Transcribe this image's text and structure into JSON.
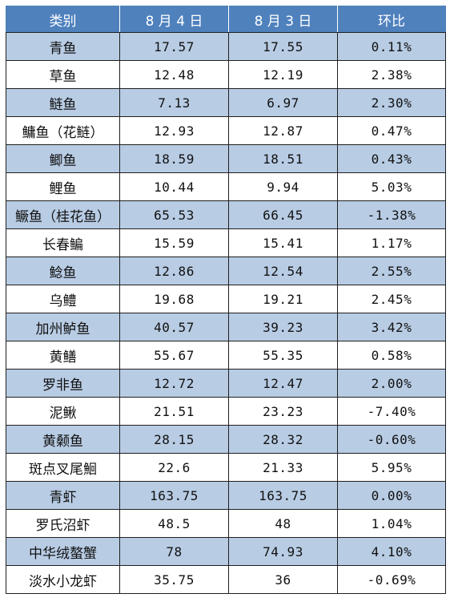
{
  "table": {
    "headers": [
      "类别",
      "8 月 4 日",
      "8 月 3 日",
      "环比"
    ],
    "rows": [
      [
        "青鱼",
        "17.57",
        "17.55",
        "0.11%"
      ],
      [
        "草鱼",
        "12.48",
        "12.19",
        "2.38%"
      ],
      [
        "鲢鱼",
        "7.13",
        "6.97",
        "2.30%"
      ],
      [
        "鳙鱼（花鲢）",
        "12.93",
        "12.87",
        "0.47%"
      ],
      [
        "鲫鱼",
        "18.59",
        "18.51",
        "0.43%"
      ],
      [
        "鲤鱼",
        "10.44",
        "9.94",
        "5.03%"
      ],
      [
        "鳜鱼（桂花鱼）",
        "65.53",
        "66.45",
        "-1.38%"
      ],
      [
        "长春鳊",
        "15.59",
        "15.41",
        "1.17%"
      ],
      [
        "鲶鱼",
        "12.86",
        "12.54",
        "2.55%"
      ],
      [
        "乌鳢",
        "19.68",
        "19.21",
        "2.45%"
      ],
      [
        "加州鲈鱼",
        "40.57",
        "39.23",
        "3.42%"
      ],
      [
        "黄鳝",
        "55.67",
        "55.35",
        "0.58%"
      ],
      [
        "罗非鱼",
        "12.72",
        "12.47",
        "2.00%"
      ],
      [
        "泥鳅",
        "21.51",
        "23.23",
        "-7.40%"
      ],
      [
        "黄颡鱼",
        "28.15",
        "28.32",
        "-0.60%"
      ],
      [
        "斑点叉尾鮰",
        "22.6",
        "21.33",
        "5.95%"
      ],
      [
        "青虾",
        "163.75",
        "163.75",
        "0.00%"
      ],
      [
        "罗氏沼虾",
        "48.5",
        "48",
        "1.04%"
      ],
      [
        "中华绒螯蟹",
        "78",
        "74.93",
        "4.10%"
      ],
      [
        "淡水小龙虾",
        "35.75",
        "36",
        "-0.69%"
      ]
    ]
  },
  "colors": {
    "header_bg": "#4f81bd",
    "header_text": "#ffffff",
    "band_bg": "#b8cce4",
    "plain_bg": "#ffffff",
    "border": "#1f1f1f"
  }
}
